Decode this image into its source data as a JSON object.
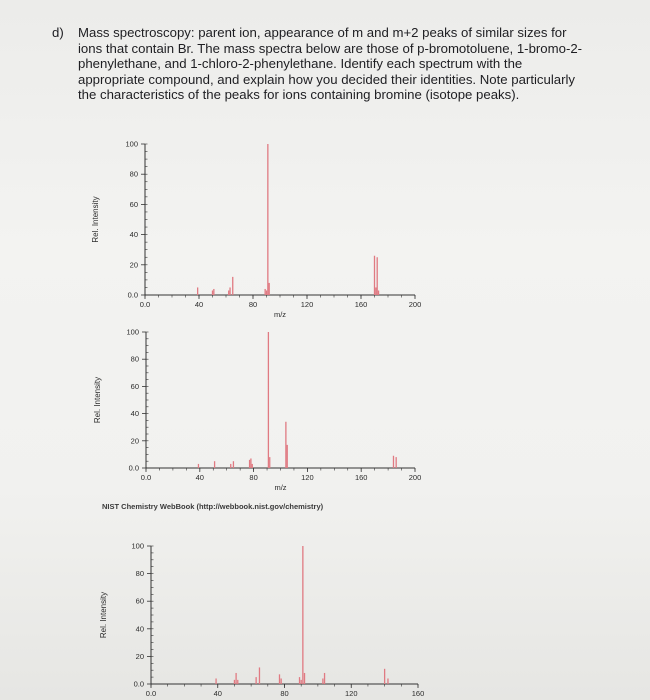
{
  "question": {
    "label": "d)",
    "text": "Mass spectroscopy: parent ion, appearance of m and m+2 peaks of similar sizes for ions that contain Br. The mass spectra below are those of p-bromotoluene, 1-bromo-2-phenylethane, and 1-chloro-2-phenylethane. Identify each spectrum with the appropriate compound, and explain how you decided their identities. Note particularly the characteristics of the peaks for ions containing bromine (isotope peaks)."
  },
  "nist_credit": "NIST Chemistry WebBook (http://webbook.nist.gov/chemistry)",
  "colors": {
    "peak": "#e07a82",
    "axis": "#333333"
  },
  "chart_data": [
    {
      "type": "bar",
      "xlabel": "m/z",
      "ylabel": "Rel. Intensity",
      "xlim": [
        0,
        200
      ],
      "ylim": [
        0,
        100
      ],
      "xticks": [
        "0.0",
        "40",
        "80",
        "120",
        "160",
        "200"
      ],
      "xtick_values": [
        0,
        40,
        80,
        120,
        160,
        200
      ],
      "yticks": [
        "0.0",
        "20",
        "40",
        "60",
        "80",
        "100"
      ],
      "ytick_values": [
        0,
        20,
        40,
        60,
        80,
        100
      ],
      "peaks": [
        {
          "x": 39,
          "y": 5
        },
        {
          "x": 50,
          "y": 3
        },
        {
          "x": 51,
          "y": 4
        },
        {
          "x": 62,
          "y": 3
        },
        {
          "x": 63,
          "y": 5
        },
        {
          "x": 65,
          "y": 12
        },
        {
          "x": 89,
          "y": 4
        },
        {
          "x": 90,
          "y": 3
        },
        {
          "x": 91,
          "y": 100
        },
        {
          "x": 92,
          "y": 8
        },
        {
          "x": 170,
          "y": 26
        },
        {
          "x": 171,
          "y": 5
        },
        {
          "x": 172,
          "y": 25
        },
        {
          "x": 173,
          "y": 3
        }
      ]
    },
    {
      "type": "bar",
      "xlabel": "m/z",
      "ylabel": "Rel. Intensity",
      "xlim": [
        0,
        200
      ],
      "ylim": [
        0,
        100
      ],
      "xticks": [
        "0.0",
        "40",
        "80",
        "120",
        "160",
        "200"
      ],
      "xtick_values": [
        0,
        40,
        80,
        120,
        160,
        200
      ],
      "yticks": [
        "0.0",
        "20",
        "40",
        "60",
        "80",
        "100"
      ],
      "ytick_values": [
        0,
        20,
        40,
        60,
        80,
        100
      ],
      "peaks": [
        {
          "x": 39,
          "y": 3
        },
        {
          "x": 51,
          "y": 5
        },
        {
          "x": 63,
          "y": 3
        },
        {
          "x": 65,
          "y": 5
        },
        {
          "x": 77,
          "y": 6
        },
        {
          "x": 78,
          "y": 7
        },
        {
          "x": 79,
          "y": 3
        },
        {
          "x": 91,
          "y": 100
        },
        {
          "x": 92,
          "y": 8
        },
        {
          "x": 104,
          "y": 34
        },
        {
          "x": 105,
          "y": 17
        },
        {
          "x": 184,
          "y": 9
        },
        {
          "x": 186,
          "y": 8
        }
      ]
    },
    {
      "type": "bar",
      "xlabel": "",
      "ylabel": "Rel. Intensity",
      "xlim": [
        0,
        160
      ],
      "ylim": [
        0,
        100
      ],
      "xticks": [
        "0.0",
        "40",
        "80",
        "120",
        "160"
      ],
      "xtick_values": [
        0,
        40,
        80,
        120,
        160
      ],
      "yticks": [
        "0.0",
        "20",
        "40",
        "60",
        "80",
        "100"
      ],
      "ytick_values": [
        0,
        20,
        40,
        60,
        80,
        100
      ],
      "peaks": [
        {
          "x": 39,
          "y": 4
        },
        {
          "x": 50,
          "y": 3
        },
        {
          "x": 51,
          "y": 8
        },
        {
          "x": 52,
          "y": 3
        },
        {
          "x": 63,
          "y": 5
        },
        {
          "x": 65,
          "y": 12
        },
        {
          "x": 77,
          "y": 7
        },
        {
          "x": 78,
          "y": 4
        },
        {
          "x": 89,
          "y": 5
        },
        {
          "x": 90,
          "y": 3
        },
        {
          "x": 91,
          "y": 100
        },
        {
          "x": 92,
          "y": 8
        },
        {
          "x": 103,
          "y": 4
        },
        {
          "x": 104,
          "y": 8
        },
        {
          "x": 140,
          "y": 11
        },
        {
          "x": 142,
          "y": 4
        }
      ]
    }
  ]
}
